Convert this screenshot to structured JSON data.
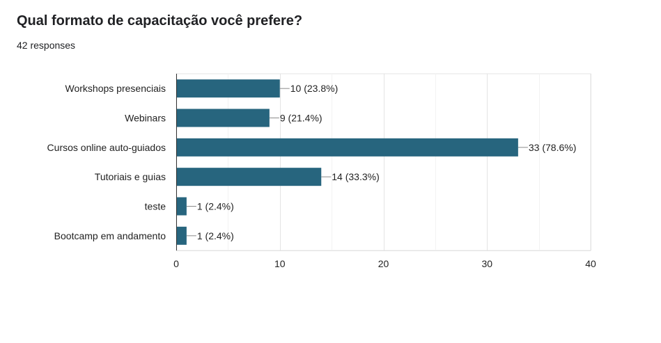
{
  "header": {
    "title": "Qual formato de capacitação você prefere?",
    "responses": "42 responses"
  },
  "chart_data": {
    "type": "bar",
    "orientation": "horizontal",
    "categories": [
      "Workshops presenciais",
      "Webinars",
      "Cursos online auto-guiados",
      "Tutoriais e guias",
      "teste",
      "Bootcamp em andamento"
    ],
    "values": [
      10,
      9,
      33,
      14,
      1,
      1
    ],
    "labels": [
      "10 (23.8%)",
      "9 (21.4%)",
      "33 (78.6%)",
      "14 (33.3%)",
      "1 (2.4%)",
      "1 (2.4%)"
    ],
    "xlim": [
      0,
      40
    ],
    "xticks": [
      0,
      10,
      20,
      30,
      40
    ],
    "grid": true,
    "bar_color": "#27657e"
  }
}
